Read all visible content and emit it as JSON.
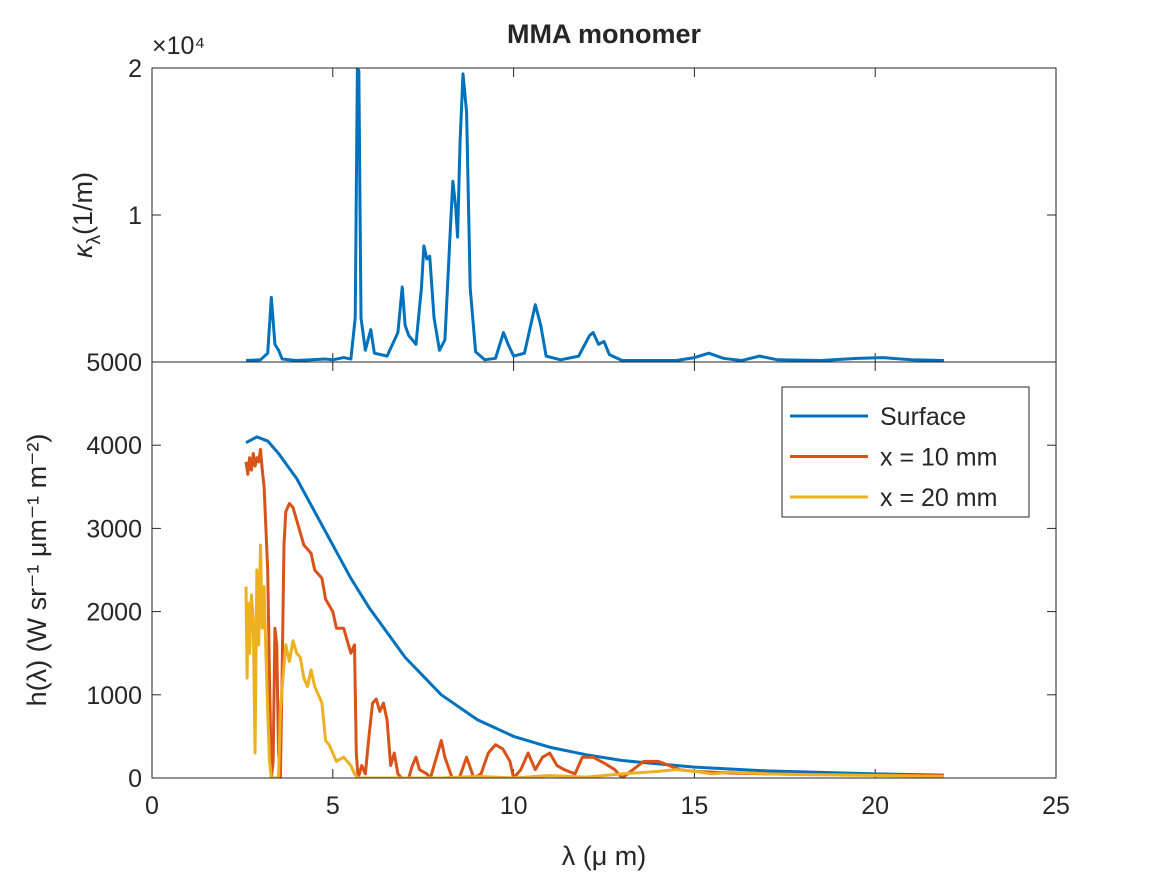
{
  "chart_data": [
    {
      "type": "line",
      "title": "MMA monomer",
      "y_multiplier": "×10⁴",
      "ylabel": "κ",
      "ylabel_sub": "λ",
      "ylabel_unit": "(1/m)",
      "xlim": [
        0,
        25
      ],
      "ylim": [
        0,
        20000
      ],
      "yticks": [
        {
          "value": 10000,
          "label": "1"
        },
        {
          "value": 20000,
          "label": "2"
        }
      ],
      "series": [
        {
          "name": "κ",
          "color": "#0072BD",
          "x": [
            2.6,
            3.0,
            3.2,
            3.3,
            3.4,
            3.5,
            3.6,
            4.0,
            4.8,
            5.0,
            5.3,
            5.5,
            5.62,
            5.68,
            5.72,
            5.78,
            5.9,
            6.05,
            6.15,
            6.5,
            6.8,
            6.92,
            7.0,
            7.1,
            7.3,
            7.45,
            7.52,
            7.6,
            7.68,
            7.8,
            7.95,
            8.1,
            8.25,
            8.32,
            8.4,
            8.45,
            8.52,
            8.6,
            8.7,
            8.8,
            8.95,
            9.2,
            9.5,
            9.72,
            9.85,
            10.0,
            10.3,
            10.6,
            10.75,
            10.9,
            11.3,
            11.8,
            12.1,
            12.2,
            12.35,
            12.5,
            12.65,
            13.0,
            14.5,
            15.0,
            15.4,
            15.8,
            16.3,
            16.8,
            17.3,
            18.5,
            19.5,
            20.2,
            21.0,
            21.9
          ],
          "values": [
            100,
            150,
            600,
            4400,
            1200,
            800,
            200,
            100,
            200,
            150,
            300,
            200,
            3000,
            20000,
            19800,
            3000,
            800,
            2200,
            600,
            400,
            2000,
            5100,
            2500,
            1800,
            1200,
            5000,
            7900,
            7000,
            7200,
            3000,
            800,
            1500,
            9000,
            12300,
            10500,
            8500,
            15000,
            19600,
            17000,
            5000,
            700,
            150,
            250,
            2000,
            1200,
            400,
            600,
            3900,
            2500,
            400,
            150,
            400,
            1800,
            2000,
            1200,
            1400,
            500,
            100,
            100,
            300,
            600,
            250,
            100,
            400,
            150,
            100,
            250,
            300,
            150,
            100
          ]
        }
      ]
    },
    {
      "type": "line",
      "xlabel": "λ (μ m)",
      "ylabel": "h(λ) (W sr⁻¹ μm⁻¹ m⁻²)",
      "legend": "upper right",
      "xlim": [
        0,
        25
      ],
      "ylim": [
        0,
        5000
      ],
      "xticks": [
        0,
        5,
        10,
        15,
        20,
        25
      ],
      "yticks": [
        0,
        1000,
        2000,
        3000,
        4000,
        5000
      ],
      "series": [
        {
          "name": "Surface",
          "color": "#0072BD",
          "x": [
            2.6,
            2.9,
            3.2,
            3.5,
            4.0,
            4.5,
            5.0,
            5.5,
            6.0,
            7.0,
            8.0,
            9.0,
            10.0,
            11.0,
            12.0,
            13.0,
            15.0,
            17.0,
            20.0,
            21.9
          ],
          "values": [
            4030,
            4100,
            4050,
            3900,
            3600,
            3200,
            2800,
            2400,
            2050,
            1450,
            1000,
            700,
            500,
            370,
            280,
            210,
            130,
            85,
            50,
            35
          ]
        },
        {
          "name": "x = 10 mm",
          "color": "#D95319",
          "x": [
            2.6,
            2.65,
            2.7,
            2.75,
            2.8,
            2.85,
            2.9,
            2.95,
            3.0,
            3.05,
            3.1,
            3.15,
            3.2,
            3.25,
            3.3,
            3.35,
            3.4,
            3.45,
            3.5,
            3.55,
            3.6,
            3.65,
            3.7,
            3.8,
            3.9,
            4.0,
            4.2,
            4.4,
            4.5,
            4.7,
            4.8,
            5.0,
            5.1,
            5.3,
            5.5,
            5.6,
            5.65,
            5.7,
            5.8,
            5.9,
            6.0,
            6.1,
            6.2,
            6.3,
            6.4,
            6.5,
            6.6,
            6.7,
            6.8,
            6.9,
            7.1,
            7.2,
            7.3,
            7.4,
            7.6,
            7.7,
            7.9,
            8.0,
            8.1,
            8.3,
            8.5,
            8.7,
            8.9,
            9.1,
            9.3,
            9.5,
            9.7,
            9.9,
            10.0,
            10.2,
            10.4,
            10.6,
            10.8,
            11.0,
            11.2,
            11.4,
            11.7,
            11.9,
            12.2,
            12.5,
            12.8,
            13.0,
            13.3,
            13.6,
            14.0,
            14.3,
            14.6,
            15.0,
            16.0,
            17.0,
            18.0,
            20.0,
            21.9
          ],
          "values": [
            3800,
            3650,
            3850,
            3700,
            3900,
            3750,
            3850,
            3800,
            3950,
            3700,
            3500,
            3000,
            2500,
            1200,
            0,
            200,
            1800,
            1600,
            300,
            0,
            1300,
            2800,
            3200,
            3300,
            3250,
            3100,
            2800,
            2700,
            2500,
            2400,
            2150,
            2000,
            1800,
            1800,
            1500,
            1600,
            300,
            0,
            150,
            50,
            500,
            900,
            950,
            800,
            900,
            700,
            150,
            300,
            50,
            0,
            0,
            150,
            250,
            100,
            50,
            0,
            300,
            450,
            250,
            0,
            0,
            250,
            0,
            50,
            300,
            400,
            350,
            200,
            0,
            100,
            300,
            100,
            250,
            300,
            150,
            100,
            50,
            250,
            250,
            180,
            100,
            0,
            100,
            200,
            200,
            150,
            100,
            80,
            60,
            50,
            45,
            35,
            30
          ]
        },
        {
          "name": "x = 20 mm",
          "color": "#EDB120",
          "x": [
            2.6,
            2.63,
            2.66,
            2.7,
            2.75,
            2.8,
            2.85,
            2.9,
            2.95,
            3.0,
            3.05,
            3.1,
            3.15,
            3.2,
            3.25,
            3.3,
            3.4,
            3.5,
            3.55,
            3.6,
            3.7,
            3.8,
            3.9,
            4.0,
            4.1,
            4.2,
            4.3,
            4.4,
            4.5,
            4.6,
            4.7,
            4.8,
            4.9,
            5.0,
            5.1,
            5.3,
            5.5,
            5.6,
            5.7,
            6.0,
            7.0,
            8.0,
            9.0,
            10.0,
            11.0,
            12.0,
            13.0,
            14.0,
            14.5,
            15.0,
            15.5,
            16.0,
            17.0,
            18.0,
            20.0,
            21.9
          ],
          "values": [
            2300,
            1200,
            2100,
            1500,
            2200,
            1900,
            300,
            2500,
            1600,
            2800,
            1800,
            2300,
            1500,
            800,
            200,
            0,
            0,
            0,
            800,
            1100,
            1600,
            1400,
            1650,
            1500,
            1450,
            1200,
            1100,
            1300,
            1100,
            1000,
            900,
            450,
            400,
            300,
            200,
            250,
            150,
            50,
            0,
            0,
            0,
            0,
            20,
            0,
            30,
            10,
            50,
            80,
            100,
            80,
            50,
            70,
            50,
            40,
            30,
            20
          ]
        }
      ]
    }
  ]
}
